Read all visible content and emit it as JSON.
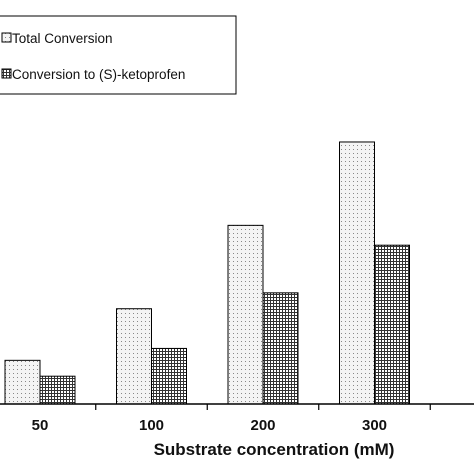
{
  "chart_data": {
    "type": "bar",
    "title": "",
    "xlabel": "Substrate concentration (mM)",
    "ylabel": "",
    "categories": [
      "50",
      "100",
      "200",
      "300"
    ],
    "series": [
      {
        "name": "Total Conversion",
        "values": [
          11,
          24,
          45,
          66
        ]
      },
      {
        "name": "Conversion to (S)-ketoprofen",
        "values": [
          7,
          14,
          28,
          40
        ]
      }
    ],
    "ylim": [
      0,
      100
    ],
    "grid": false,
    "legend": "top-left",
    "colors": {
      "series_0_fill": "#f0f0f0",
      "series_1_fill": "#e0e0e0",
      "edge": "#000000"
    }
  }
}
